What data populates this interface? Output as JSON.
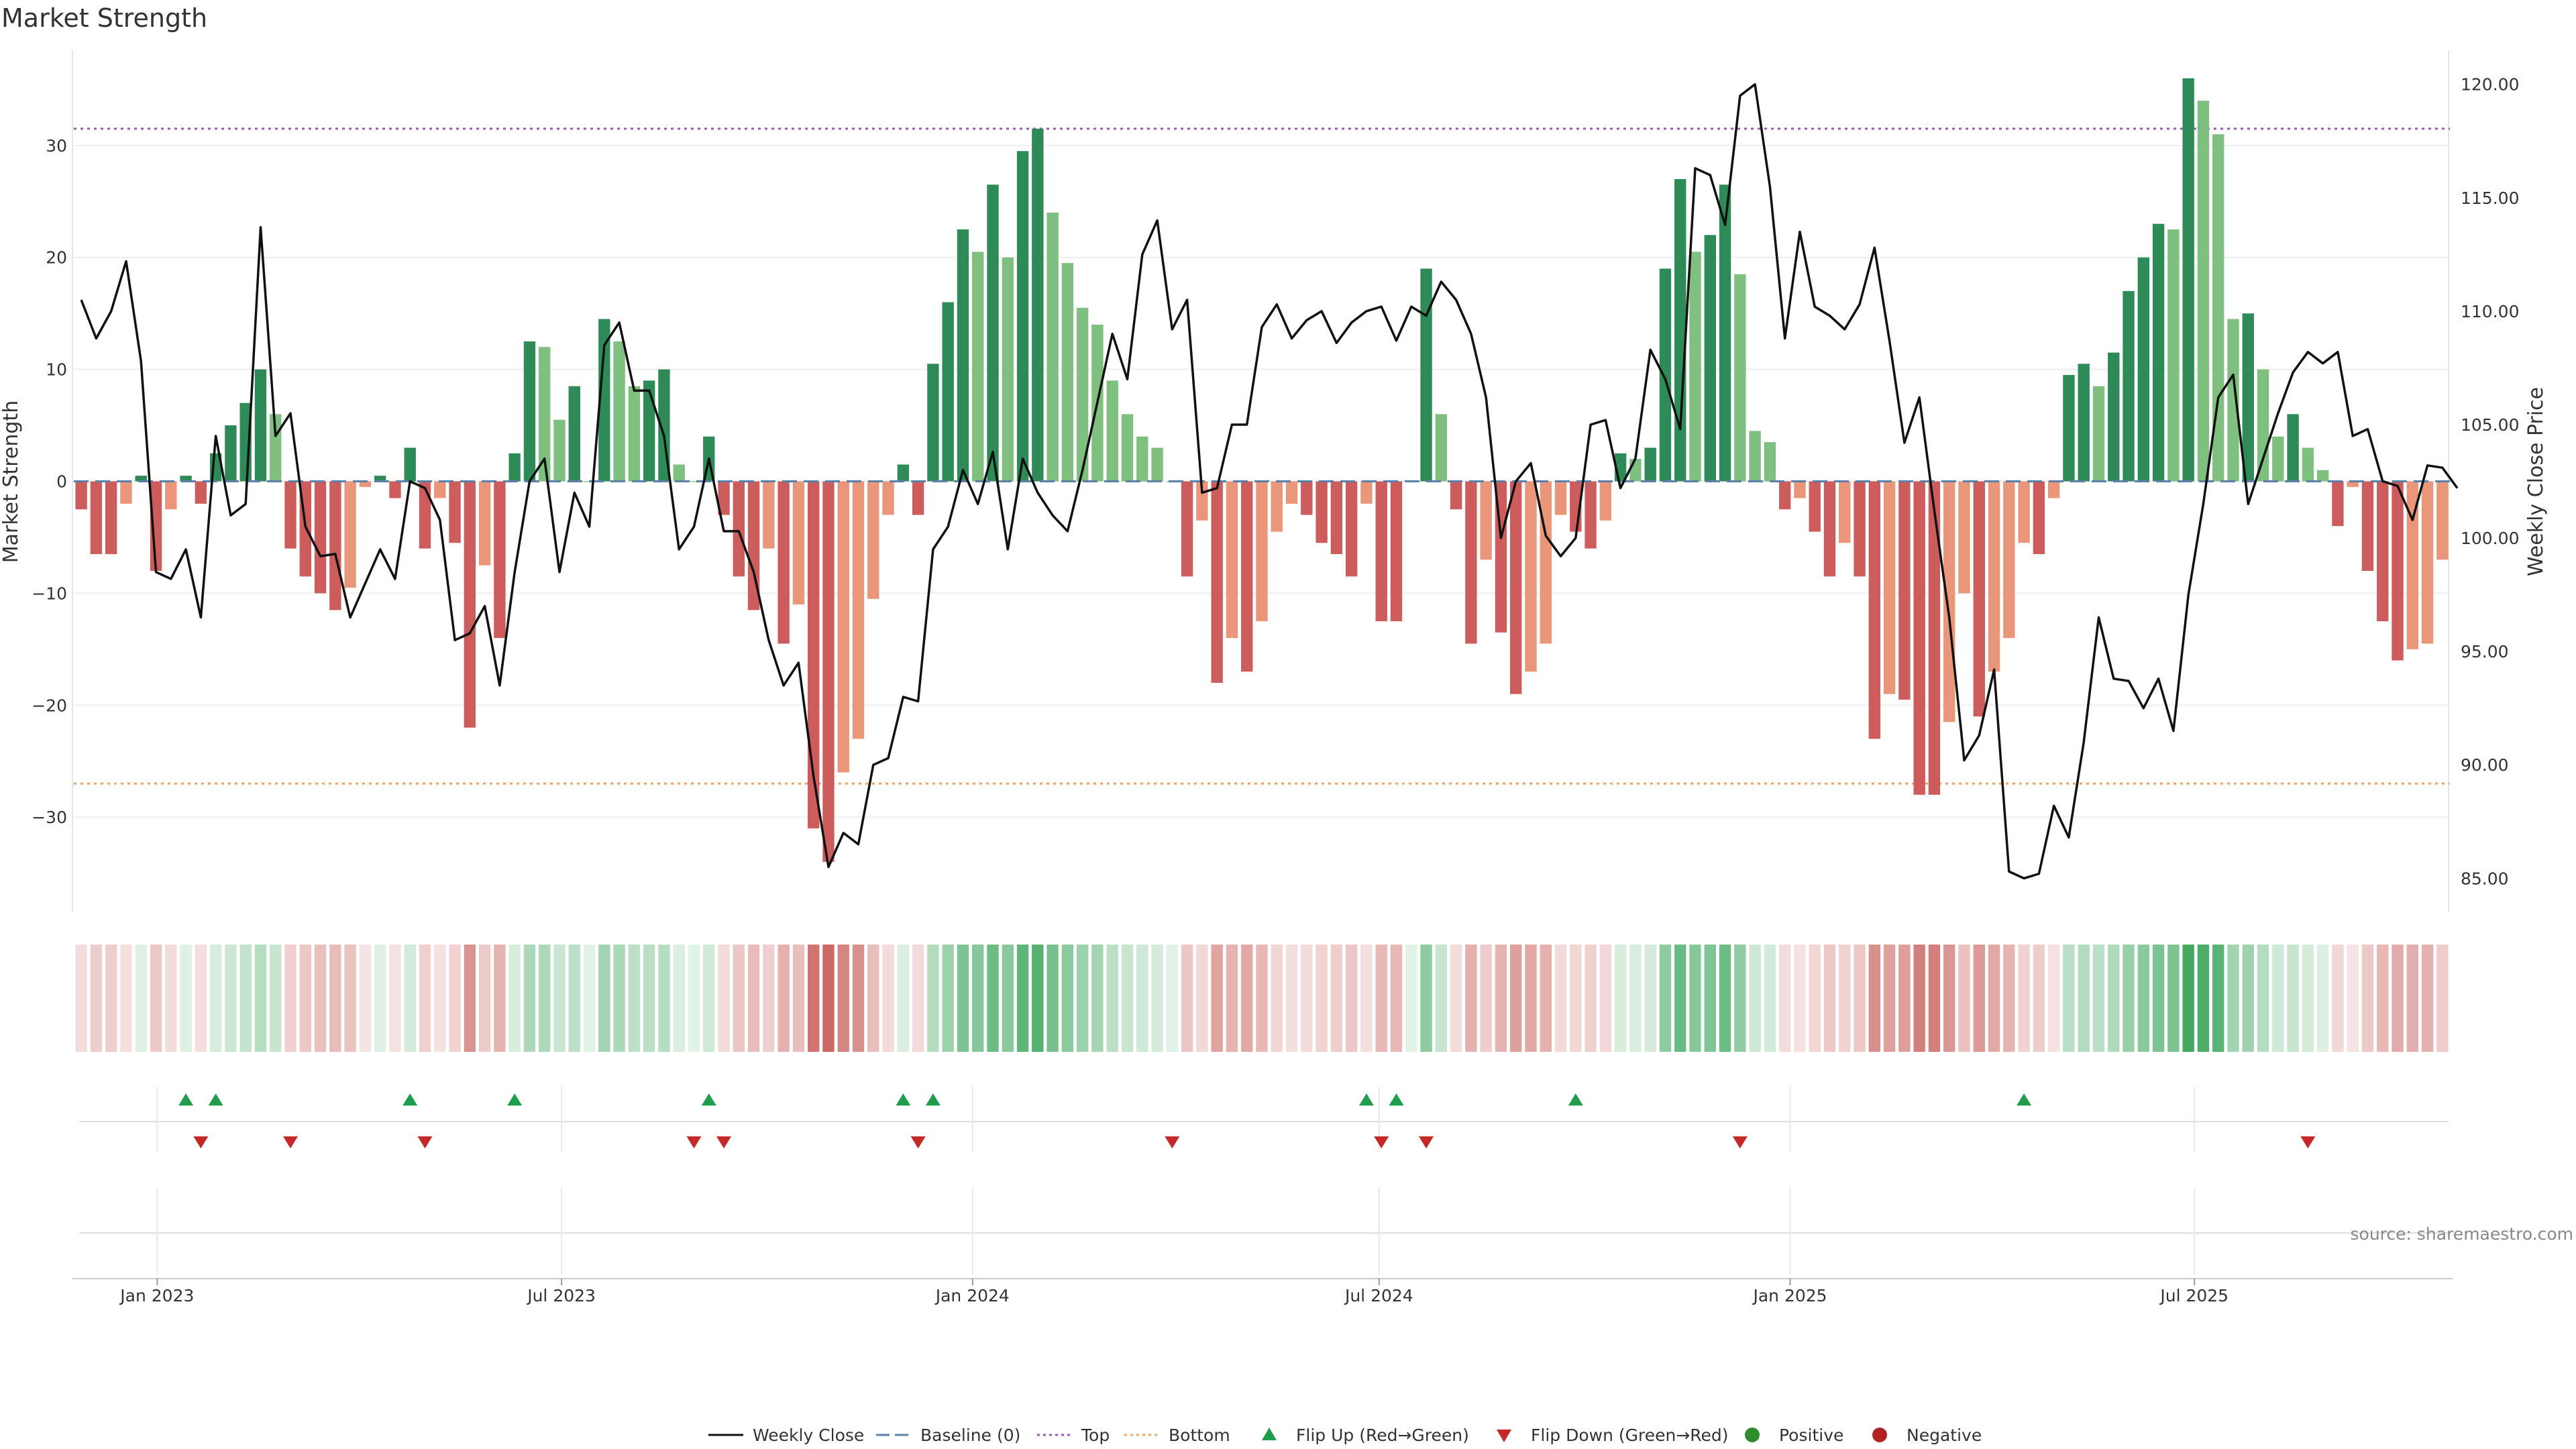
{
  "chart_data": {
    "type": "bar",
    "title": "Market Strength",
    "ylabel_left": "Market Strength",
    "ylabel_right": "Weekly Close Price",
    "ylim_left": [
      -38.5,
      38.5
    ],
    "ylim_right": [
      83.5,
      121.5
    ],
    "yticks_left": [
      30,
      20,
      10,
      0,
      -10,
      -20,
      -30
    ],
    "ytick_labels_left": [
      "30",
      "20",
      "10",
      "0",
      "−10",
      "−20",
      "−30"
    ],
    "yticks_right": [
      120,
      115,
      110,
      105,
      100,
      95,
      90,
      85
    ],
    "ytick_labels_right": [
      "120.00",
      "115.00",
      "110.00",
      "105.00",
      "100.00",
      "95.00",
      "90.00",
      "85.00"
    ],
    "x_dates": [
      "2022-11-28",
      "2025-10-20"
    ],
    "x_ticks": [
      {
        "label": "Jan 2023",
        "date": "2023-01-01"
      },
      {
        "label": "Jul 2023",
        "date": "2023-07-01"
      },
      {
        "label": "Jan 2024",
        "date": "2024-01-01"
      },
      {
        "label": "Jul 2024",
        "date": "2024-07-01"
      },
      {
        "label": "Jan 2025",
        "date": "2025-01-01"
      },
      {
        "label": "Jul 2025",
        "date": "2025-07-01"
      }
    ],
    "top_line": 31.5,
    "bottom_line": -27,
    "baseline": 0,
    "strength": [
      -2.5,
      -6.5,
      -6.5,
      -2,
      0.5,
      -8,
      -2.5,
      0.5,
      -2,
      2.5,
      5,
      7,
      10,
      6,
      -6,
      -8.5,
      -10,
      -11.5,
      -9.5,
      -0.5,
      0.5,
      -1.5,
      3,
      -6,
      -1.5,
      -5.5,
      -22,
      -7.5,
      -14,
      2.5,
      12.5,
      12,
      5.5,
      8.5,
      0,
      14.5,
      12.5,
      8.5,
      9,
      10,
      1.5,
      0,
      4,
      -3,
      -8.5,
      -11.5,
      -6,
      -14.5,
      -11,
      -31,
      -34,
      -26,
      -23,
      -10.5,
      -3,
      1.5,
      -3,
      10.5,
      16,
      22.5,
      20.5,
      26.5,
      20,
      29.5,
      31.5,
      24,
      19.5,
      15.5,
      14,
      9,
      6,
      4,
      3,
      0,
      -8.5,
      -3.5,
      -18,
      -14,
      -17,
      -12.5,
      -4.5,
      -2,
      -3,
      -5.5,
      -6.5,
      -8.5,
      -2,
      -12.5,
      -12.5,
      0,
      19,
      6,
      -2.5,
      -14.5,
      -7,
      -13.5,
      -19,
      -17,
      -14.5,
      -3,
      -4.5,
      -6,
      -3.5,
      2.5,
      2,
      3,
      19,
      27,
      20.5,
      22,
      26.5,
      18.5,
      4.5,
      3.5,
      -2.5,
      -1.5,
      -4.5,
      -8.5,
      -5.5,
      -8.5,
      -23,
      -19,
      -19.5,
      -28,
      -28,
      -21.5,
      -10,
      -21,
      -17,
      -14,
      -5.5,
      -6.5,
      -1.5,
      9.5,
      10.5,
      8.5,
      11.5,
      17,
      20,
      23,
      22.5,
      36,
      34,
      31,
      14.5,
      15,
      10,
      4,
      6,
      3,
      1,
      -4,
      -0.5,
      -8,
      -12.5,
      -16,
      -15,
      -14.5,
      -7
    ],
    "weekly_close": [
      110.5,
      108.8,
      110,
      112.2,
      107.8,
      98.5,
      98.2,
      99.5,
      96.5,
      104.5,
      101,
      101.5,
      113.7,
      104.5,
      105.5,
      100.5,
      99.2,
      99.3,
      96.5,
      98,
      99.5,
      98.2,
      102.5,
      102.2,
      100.8,
      95.5,
      95.8,
      97,
      93.5,
      98.5,
      102.5,
      103.5,
      98.5,
      102,
      100.5,
      108.5,
      109.5,
      106.5,
      106.5,
      104.5,
      99.5,
      100.5,
      103.5,
      100.3,
      100.3,
      98.5,
      95.5,
      93.5,
      94.5,
      89.5,
      85.5,
      87,
      86.5,
      90,
      90.3,
      93,
      92.8,
      99.5,
      100.5,
      103,
      101.5,
      103.8,
      99.5,
      103.5,
      102,
      101,
      100.3,
      103,
      106,
      109,
      107,
      112.5,
      114,
      109.2,
      110.5,
      102,
      102.2,
      105,
      105,
      109.3,
      110.3,
      108.8,
      109.6,
      110,
      108.6,
      109.5,
      110,
      110.2,
      108.7,
      110.2,
      109.8,
      111.3,
      110.5,
      109,
      106.2,
      100,
      102.5,
      103.3,
      100.1,
      99.2,
      100,
      105,
      105.2,
      102.2,
      103.5,
      108.3,
      107,
      104.8,
      116.3,
      116,
      113.8,
      119.5,
      120,
      115.5,
      108.8,
      113.5,
      110.2,
      109.8,
      109.2,
      110.3,
      112.8,
      108.7,
      104.2,
      106.2,
      101.2,
      96.5,
      90.2,
      91.3,
      94.2,
      85.3,
      85,
      85.2,
      88.2,
      86.8,
      91,
      96.5,
      93.8,
      93.7,
      92.5,
      93.8,
      91.5,
      97.5,
      101.5,
      106.2,
      107.2,
      101.5,
      103.5,
      105.5,
      107.3,
      108.2,
      107.7,
      108.2,
      104.5,
      104.8,
      102.5,
      102.3,
      100.8,
      103.2,
      103.1,
      102.2
    ],
    "flip_up_weeks": [
      7,
      9,
      22,
      29,
      42,
      55,
      57,
      86,
      88,
      100,
      130
    ],
    "flip_down_weeks": [
      8,
      14,
      23,
      41,
      43,
      56,
      73,
      87,
      90,
      111,
      149
    ],
    "legend": [
      {
        "label": "Weekly Close",
        "kind": "line"
      },
      {
        "label": "Baseline (0)",
        "kind": "dash"
      },
      {
        "label": "Top",
        "kind": "dotted-purple"
      },
      {
        "label": "Bottom",
        "kind": "dotted-orange"
      },
      {
        "label": "Flip Up (Red→Green)",
        "kind": "triangle-up"
      },
      {
        "label": "Flip Down (Green→Red)",
        "kind": "triangle-down"
      },
      {
        "label": "Positive",
        "kind": "dot-green"
      },
      {
        "label": "Negative",
        "kind": "dot-red"
      }
    ],
    "source_text": "source: sharemaestro.com"
  },
  "colors": {
    "pos_strong": "#2e8b57",
    "pos_light": "#7fbf7f",
    "neg_strong": "#cd5c5c",
    "neg_light": "#e9967a",
    "close_line": "#111111",
    "baseline": "#5b7fa6",
    "top_line": "#9b59b6",
    "bottom_line": "#f0a35e",
    "flip_up": "#1e9e4a",
    "flip_down": "#c62828",
    "dot_green": "#2e8b2e",
    "dot_red": "#b22222"
  }
}
